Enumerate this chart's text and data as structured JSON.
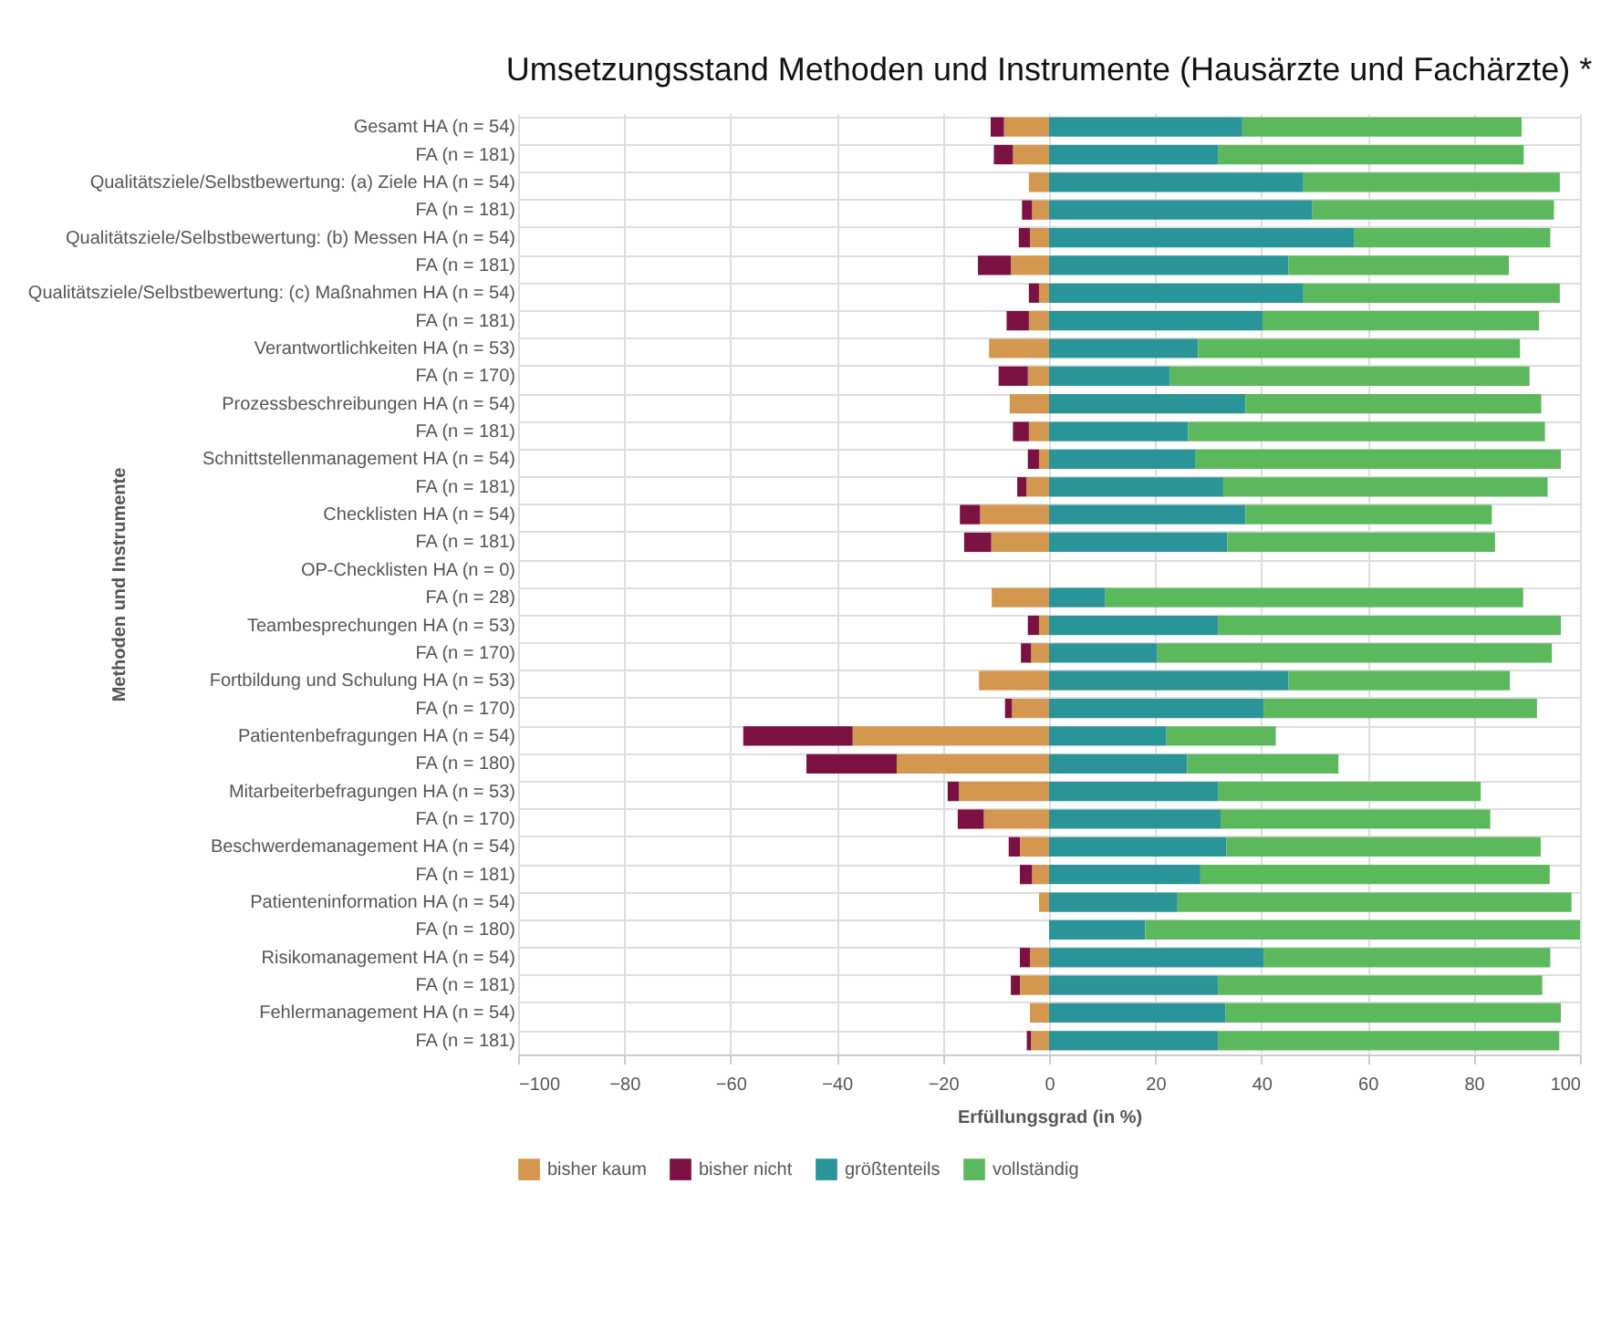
{
  "chart_data": {
    "type": "bar",
    "orientation": "horizontal",
    "stacked": true,
    "title": "Umsetzungsstand Methoden und Instrumente (Hausärzte und Fachärzte) *",
    "xlabel": "Erfüllungsgrad (in %)",
    "ylabel": "Methoden und Instrumente",
    "categories": [
      "Gesamt HA (n = 54)",
      "FA (n = 181)",
      "Qualitätsziele/Selbstbewertung: (a) Ziele HA (n = 54)",
      "FA (n = 181)",
      "Qualitätsziele/Selbstbewertung: (b) Messen HA (n = 54)",
      "FA (n = 181)",
      "Qualitätsziele/Selbstbewertung: (c) Maßnahmen HA (n = 54)",
      "FA (n = 181)",
      "Verantwortlichkeiten HA (n = 53)",
      "FA (n = 170)",
      "Prozessbeschreibungen HA (n = 54)",
      "FA (n = 181)",
      "Schnittstellenmanagement HA (n = 54)",
      "FA (n = 181)",
      "Checklisten HA (n = 54)",
      "FA (n = 181)",
      "OP-Checklisten HA (n = 0)",
      "FA (n = 28)",
      "Teambesprechungen HA (n = 53)",
      "FA (n = 170)",
      "Fortbildung und Schulung HA (n = 53)",
      "FA (n = 170)",
      "Patientenbefragungen HA (n = 54)",
      "FA (n = 180)",
      "Mitarbeiterbefragungen HA (n = 53)",
      "FA (n = 170)",
      "Beschwerdemanagement HA (n = 54)",
      "FA (n = 181)",
      "Patienteninformation HA (n = 54)",
      "FA (n = 180)",
      "Risikomanagement HA (n = 54)",
      "FA (n = 181)",
      "Fehlermanagement HA (n = 54)",
      "FA (n = 181)"
    ],
    "series": [
      {
        "name": "bisher kaum",
        "color": "#d4974f",
        "values": [
          -8.5,
          -6.8,
          -3.8,
          -3.2,
          -3.6,
          -7.2,
          -1.9,
          -3.8,
          -11.3,
          -4,
          -7.4,
          -3.8,
          -1.9,
          -4.3,
          -13,
          -10.9,
          null,
          -10.8,
          -1.9,
          -3.4,
          -13.2,
          -7,
          -37,
          -28.7,
          -17,
          -12.3,
          -5.5,
          -3.2,
          -1.9,
          0,
          -3.6,
          -5.5,
          -3.6,
          -3.4
        ]
      },
      {
        "name": "bisher nicht",
        "color": "#7b1042",
        "values": [
          -2.5,
          -3.6,
          0,
          -1.9,
          -2.1,
          -6.2,
          -1.9,
          -4.2,
          0,
          -5.5,
          0,
          -3,
          -2.1,
          -1.7,
          -3.8,
          -5.1,
          null,
          0,
          -2.1,
          -1.9,
          0,
          -1.3,
          -20.6,
          -17,
          -2.1,
          -4.9,
          -2.1,
          -2.3,
          0,
          0,
          -1.9,
          -1.7,
          0,
          -0.8
        ]
      },
      {
        "name": "größtenteils",
        "color": "#2a9598",
        "values": [
          36.4,
          31.9,
          47.9,
          49.6,
          57.4,
          45.1,
          47.9,
          40.2,
          28.1,
          22.8,
          37,
          26.2,
          27.5,
          32.8,
          37,
          33.6,
          null,
          10.6,
          31.9,
          20.4,
          45.1,
          40.4,
          22.1,
          26,
          31.9,
          32.3,
          33.4,
          28.5,
          24.2,
          18.1,
          40.4,
          31.9,
          33.2,
          31.9
        ]
      },
      {
        "name": "vollständig",
        "color": "#5cb85c",
        "values": [
          52.6,
          57.5,
          48.3,
          45.5,
          37,
          41.5,
          48.3,
          52.1,
          60.6,
          67.7,
          55.7,
          67.2,
          68.9,
          61.1,
          46.4,
          50.4,
          null,
          78.7,
          64.5,
          74.3,
          41.7,
          51.5,
          20.6,
          28.5,
          49.4,
          50.8,
          59.2,
          65.8,
          74.2,
          81.9,
          54,
          61,
          63.2,
          64.2
        ]
      }
    ],
    "xlim": [
      -100,
      100
    ],
    "xticks": [
      -100,
      -80,
      -60,
      -40,
      -20,
      0,
      20,
      40,
      60,
      80,
      100
    ],
    "grid": true,
    "legend": "bottom"
  }
}
